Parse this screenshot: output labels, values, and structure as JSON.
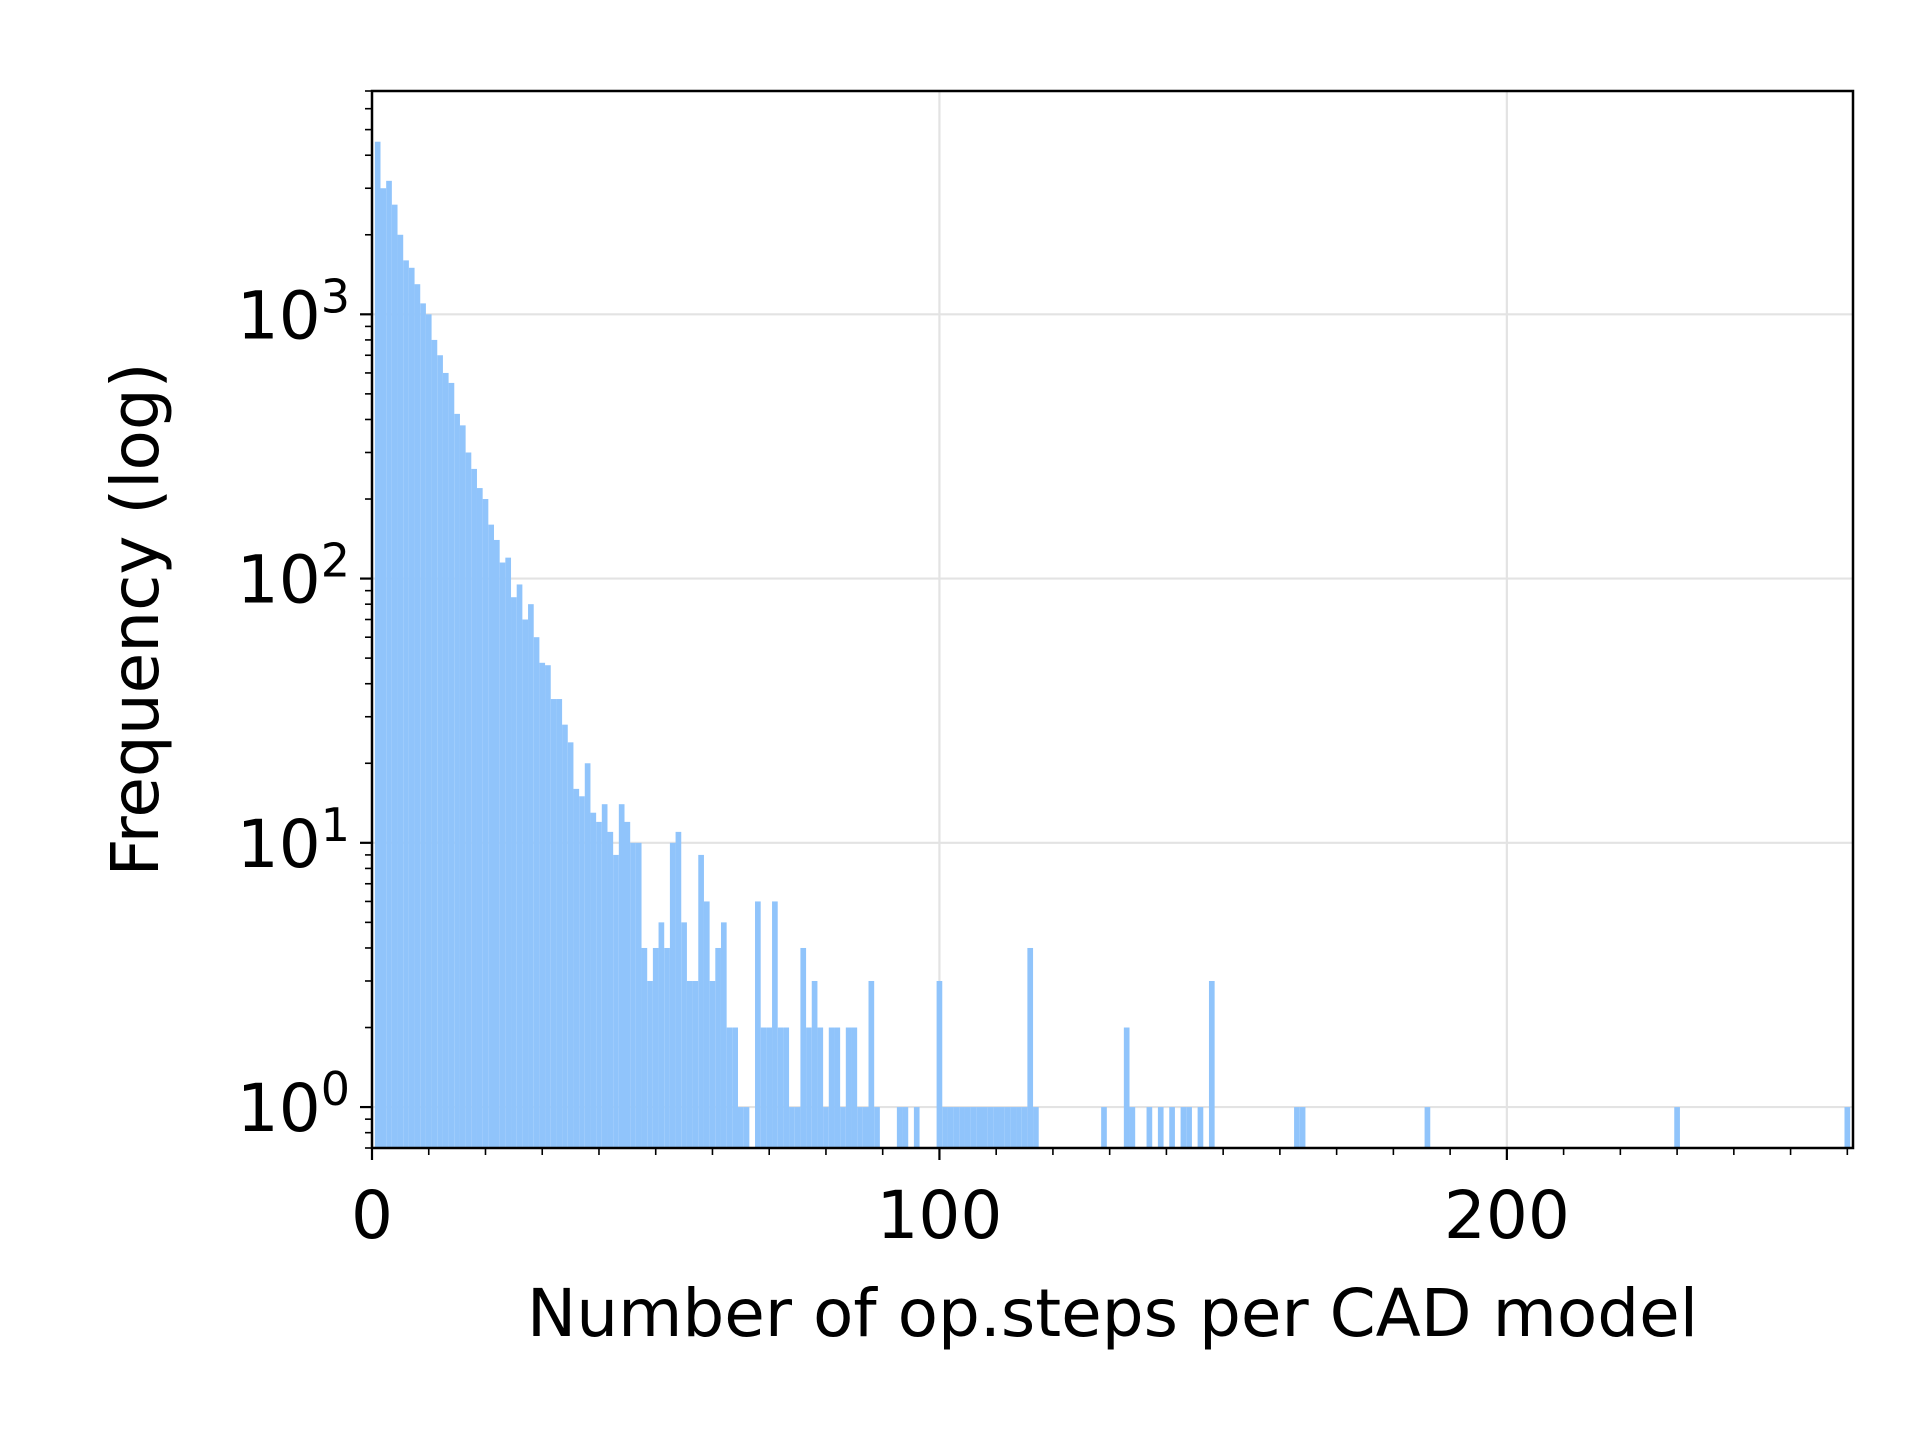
{
  "chart_data": {
    "type": "bar",
    "title": "",
    "xlabel": "Number of op.steps per CAD model",
    "ylabel": "Frequency (log)",
    "yscale": "log",
    "xlim": [
      0,
      261
    ],
    "ylim": [
      0.7,
      7000
    ],
    "x_ticks": [
      {
        "value": 0,
        "label": "0"
      },
      {
        "value": 100,
        "label": "100"
      },
      {
        "value": 200,
        "label": "200"
      }
    ],
    "y_ticks": [
      {
        "value": 1,
        "base": "10",
        "exp": "0"
      },
      {
        "value": 10,
        "base": "10",
        "exp": "1"
      },
      {
        "value": 100,
        "base": "10",
        "exp": "2"
      },
      {
        "value": 1000,
        "base": "10",
        "exp": "3"
      }
    ],
    "grid": true,
    "bar_color": "#90c4fb",
    "bin_width": 1,
    "x": [
      1,
      2,
      3,
      4,
      5,
      6,
      7,
      8,
      9,
      10,
      11,
      12,
      13,
      14,
      15,
      16,
      17,
      18,
      19,
      20,
      21,
      22,
      23,
      24,
      25,
      26,
      27,
      28,
      29,
      30,
      31,
      32,
      33,
      34,
      35,
      36,
      37,
      38,
      39,
      40,
      41,
      42,
      43,
      44,
      45,
      46,
      47,
      48,
      49,
      50,
      51,
      52,
      53,
      54,
      55,
      56,
      57,
      58,
      59,
      60,
      61,
      62,
      63,
      64,
      65,
      66,
      68,
      69,
      70,
      71,
      72,
      73,
      74,
      75,
      76,
      77,
      78,
      79,
      80,
      81,
      82,
      83,
      84,
      85,
      86,
      87,
      88,
      89,
      93,
      94,
      96,
      100,
      101,
      102,
      103,
      104,
      105,
      106,
      107,
      108,
      109,
      110,
      111,
      112,
      113,
      114,
      115,
      116,
      117,
      129,
      133,
      134,
      137,
      139,
      141,
      143,
      144,
      146,
      148,
      163,
      164,
      186,
      230,
      260
    ],
    "values": [
      4500,
      3000,
      3200,
      2600,
      2000,
      1600,
      1500,
      1300,
      1100,
      1000,
      800,
      700,
      600,
      550,
      420,
      380,
      300,
      260,
      220,
      200,
      160,
      140,
      115,
      120,
      85,
      95,
      70,
      80,
      60,
      48,
      47,
      35,
      35,
      28,
      24,
      16,
      15,
      20,
      13,
      12,
      14,
      11,
      9,
      14,
      12,
      10,
      10,
      4,
      3,
      4,
      5,
      4,
      10,
      11,
      5,
      3,
      3,
      9,
      6,
      3,
      4,
      5,
      2,
      2,
      1,
      1,
      6,
      2,
      2,
      6,
      2,
      2,
      1,
      1,
      4,
      2,
      3,
      2,
      1,
      2,
      2,
      1,
      2,
      2,
      1,
      1,
      3,
      1,
      1,
      1,
      1,
      3,
      1,
      1,
      1,
      1,
      1,
      1,
      1,
      1,
      1,
      1,
      1,
      1,
      1,
      1,
      1,
      4,
      1,
      1,
      2,
      1,
      1,
      1,
      1,
      1,
      1,
      1,
      3,
      1,
      1,
      1,
      1,
      1
    ]
  }
}
